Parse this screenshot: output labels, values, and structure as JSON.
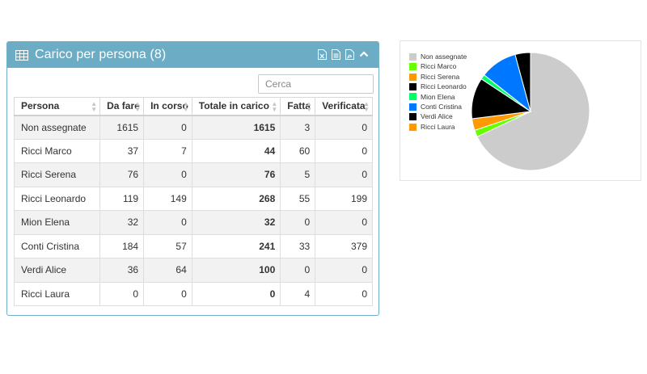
{
  "panel": {
    "title": "Carico per persona (8)",
    "search_placeholder": "Cerca",
    "columns": [
      "Persona",
      "Da fare",
      "In corso",
      "Totale in carico",
      "Fatta",
      "Verificata"
    ],
    "rows": [
      {
        "persona": "Non assegnate",
        "da_fare": "1615",
        "in_corso": "0",
        "totale": "1615",
        "fatta": "3",
        "verificata": "0"
      },
      {
        "persona": "Ricci Marco",
        "da_fare": "37",
        "in_corso": "7",
        "totale": "44",
        "fatta": "60",
        "verificata": "0"
      },
      {
        "persona": "Ricci Serena",
        "da_fare": "76",
        "in_corso": "0",
        "totale": "76",
        "fatta": "5",
        "verificata": "0"
      },
      {
        "persona": "Ricci Leonardo",
        "da_fare": "119",
        "in_corso": "149",
        "totale": "268",
        "fatta": "55",
        "verificata": "199"
      },
      {
        "persona": "Mion Elena",
        "da_fare": "32",
        "in_corso": "0",
        "totale": "32",
        "fatta": "0",
        "verificata": "0"
      },
      {
        "persona": "Conti Cristina",
        "da_fare": "184",
        "in_corso": "57",
        "totale": "241",
        "fatta": "33",
        "verificata": "379"
      },
      {
        "persona": "Verdi Alice",
        "da_fare": "36",
        "in_corso": "64",
        "totale": "100",
        "fatta": "0",
        "verificata": "0"
      },
      {
        "persona": "Ricci Laura",
        "da_fare": "0",
        "in_corso": "0",
        "totale": "0",
        "fatta": "4",
        "verificata": "0"
      }
    ],
    "tools": [
      "excel-icon",
      "csv-icon",
      "pdf-icon",
      "chevron-up-icon"
    ]
  },
  "chart_data": {
    "type": "pie",
    "categories": [
      "Non assegnate",
      "Ricci Marco",
      "Ricci Serena",
      "Ricci Leonardo",
      "Mion Elena",
      "Conti Cristina",
      "Verdi Alice",
      "Ricci Laura"
    ],
    "values": [
      1615,
      44,
      76,
      268,
      32,
      241,
      100,
      0
    ],
    "colors": [
      "#cccccc",
      "#66ff00",
      "#ff9900",
      "#000000",
      "#00ff66",
      "#0077ff",
      "#000000",
      "#ff9900"
    ],
    "legend_position": "top-left"
  }
}
